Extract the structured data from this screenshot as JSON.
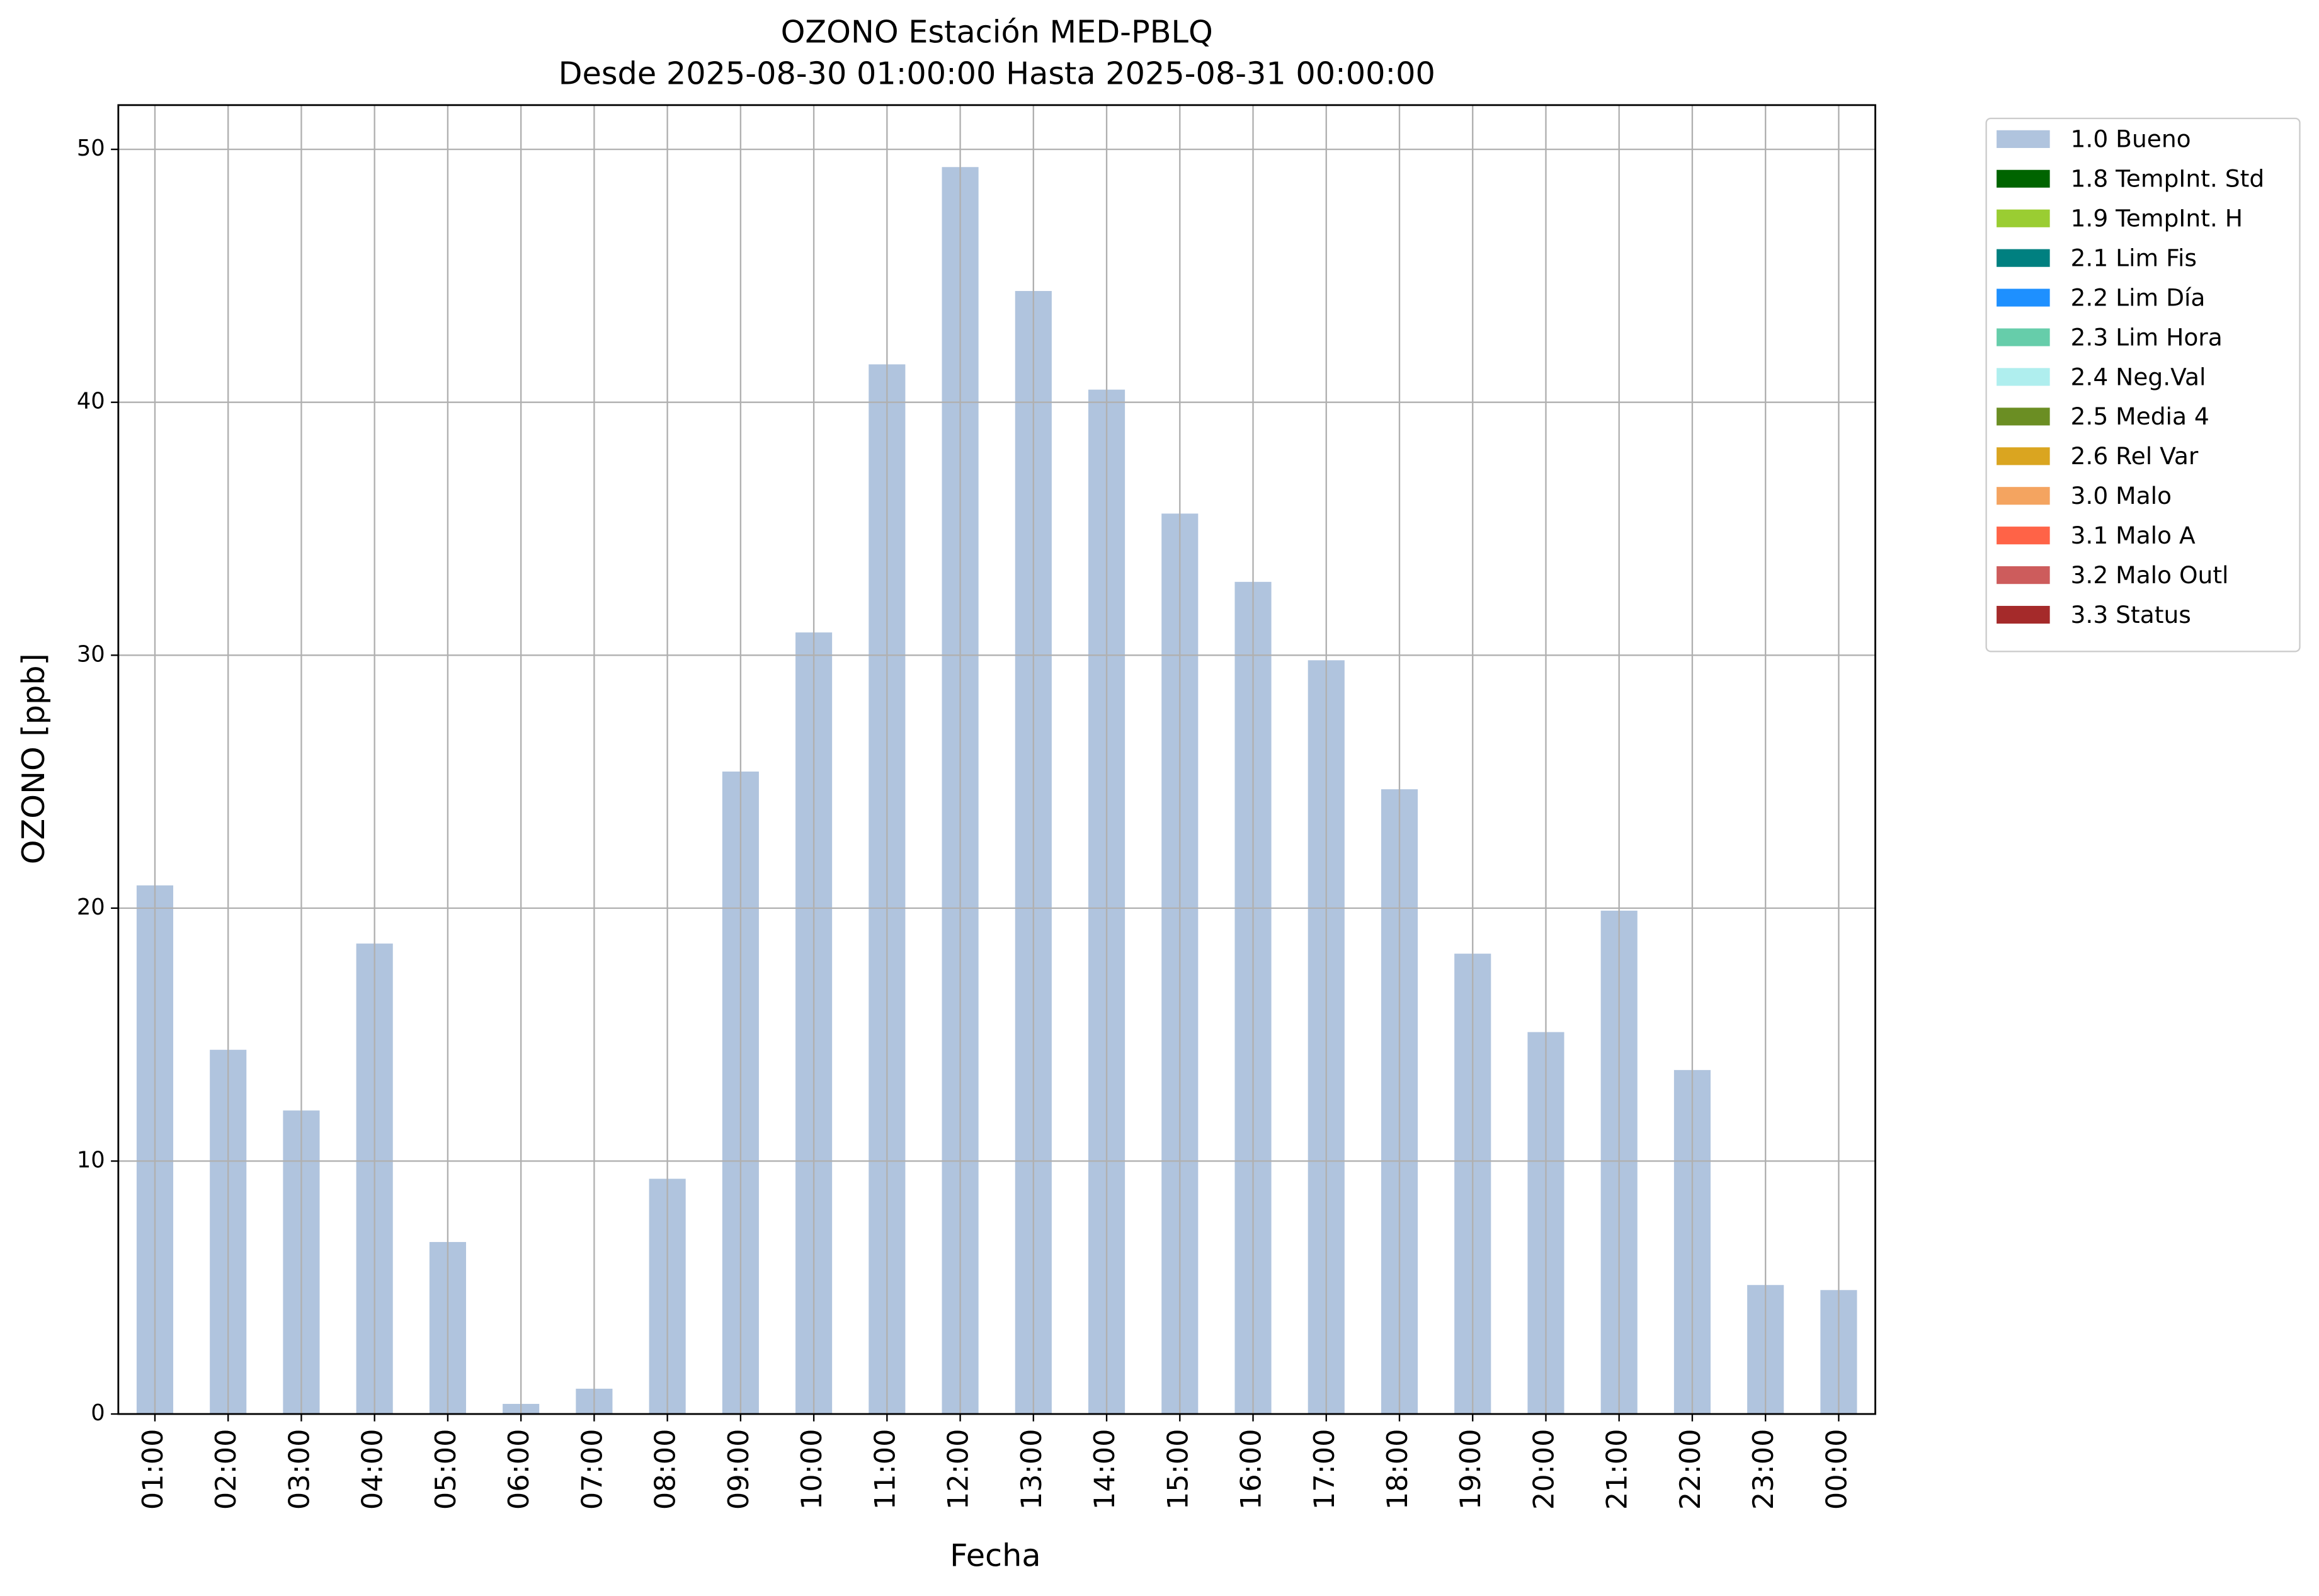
{
  "chart_data": {
    "type": "bar",
    "title": "OZONO Estación MED-PBLQ",
    "subtitle": "Desde 2025-08-30 01:00:00 Hasta 2025-08-31 00:00:00",
    "x_label": "Fecha",
    "y_label": "OZONO [ppb]",
    "categories": [
      "01:00",
      "02:00",
      "03:00",
      "04:00",
      "05:00",
      "06:00",
      "07:00",
      "08:00",
      "09:00",
      "10:00",
      "11:00",
      "12:00",
      "13:00",
      "14:00",
      "15:00",
      "16:00",
      "17:00",
      "18:00",
      "19:00",
      "20:00",
      "21:00",
      "22:00",
      "23:00",
      "00:00"
    ],
    "series": [
      {
        "name": "1.0 Bueno",
        "color": "#b0c4de",
        "values": [
          20.9,
          14.4,
          12.0,
          18.6,
          6.8,
          0.4,
          1.0,
          9.3,
          25.4,
          30.9,
          41.5,
          49.3,
          44.4,
          40.5,
          35.6,
          32.9,
          29.8,
          24.7,
          18.2,
          15.1,
          19.9,
          13.6,
          5.1,
          4.9
        ]
      },
      {
        "name": "1.8 TempInt. Std",
        "color": "#006400",
        "values": [
          0,
          0,
          0,
          0,
          0,
          0,
          0,
          0,
          0,
          0,
          0,
          0,
          0,
          0,
          0,
          0,
          0,
          0,
          0,
          0,
          0,
          0,
          0,
          0
        ]
      },
      {
        "name": "1.9 TempInt. H",
        "color": "#9acd32",
        "values": [
          0,
          0,
          0,
          0,
          0,
          0,
          0,
          0,
          0,
          0,
          0,
          0,
          0,
          0,
          0,
          0,
          0,
          0,
          0,
          0,
          0,
          0,
          0,
          0
        ]
      },
      {
        "name": "2.1 Lim Fis",
        "color": "#008080",
        "values": [
          0,
          0,
          0,
          0,
          0,
          0,
          0,
          0,
          0,
          0,
          0,
          0,
          0,
          0,
          0,
          0,
          0,
          0,
          0,
          0,
          0,
          0,
          0,
          0
        ]
      },
      {
        "name": "2.2 Lim Día",
        "color": "#1e90ff",
        "values": [
          0,
          0,
          0,
          0,
          0,
          0,
          0,
          0,
          0,
          0,
          0,
          0,
          0,
          0,
          0,
          0,
          0,
          0,
          0,
          0,
          0,
          0,
          0,
          0
        ]
      },
      {
        "name": "2.3 Lim Hora",
        "color": "#66cdaa",
        "values": [
          0,
          0,
          0,
          0,
          0,
          0,
          0,
          0,
          0,
          0,
          0,
          0,
          0,
          0,
          0,
          0,
          0,
          0,
          0,
          0,
          0,
          0,
          0,
          0
        ]
      },
      {
        "name": "2.4 Neg.Val",
        "color": "#afeeee",
        "values": [
          0,
          0,
          0,
          0,
          0,
          0,
          0,
          0,
          0,
          0,
          0,
          0,
          0,
          0,
          0,
          0,
          0,
          0,
          0,
          0,
          0,
          0,
          0,
          0
        ]
      },
      {
        "name": "2.5 Media 4",
        "color": "#6b8e23",
        "values": [
          0,
          0,
          0,
          0,
          0,
          0,
          0,
          0,
          0,
          0,
          0,
          0,
          0,
          0,
          0,
          0,
          0,
          0,
          0,
          0,
          0,
          0,
          0,
          0
        ]
      },
      {
        "name": "2.6 Rel Var",
        "color": "#daa520",
        "values": [
          0,
          0,
          0,
          0,
          0,
          0,
          0,
          0,
          0,
          0,
          0,
          0,
          0,
          0,
          0,
          0,
          0,
          0,
          0,
          0,
          0,
          0,
          0,
          0
        ]
      },
      {
        "name": "3.0 Malo",
        "color": "#f4a460",
        "values": [
          0,
          0,
          0,
          0,
          0,
          0,
          0,
          0,
          0,
          0,
          0,
          0,
          0,
          0,
          0,
          0,
          0,
          0,
          0,
          0,
          0,
          0,
          0,
          0
        ]
      },
      {
        "name": "3.1 Malo A",
        "color": "#ff6347",
        "values": [
          0,
          0,
          0,
          0,
          0,
          0,
          0,
          0,
          0,
          0,
          0,
          0,
          0,
          0,
          0,
          0,
          0,
          0,
          0,
          0,
          0,
          0,
          0,
          0
        ]
      },
      {
        "name": "3.2 Malo Outl",
        "color": "#cd5c5c",
        "values": [
          0,
          0,
          0,
          0,
          0,
          0,
          0,
          0,
          0,
          0,
          0,
          0,
          0,
          0,
          0,
          0,
          0,
          0,
          0,
          0,
          0,
          0,
          0,
          0
        ]
      },
      {
        "name": "3.3 Status",
        "color": "#a52a2a",
        "values": [
          0,
          0,
          0,
          0,
          0,
          0,
          0,
          0,
          0,
          0,
          0,
          0,
          0,
          0,
          0,
          0,
          0,
          0,
          0,
          0,
          0,
          0,
          0,
          0
        ]
      }
    ],
    "stacked": true,
    "ylim": [
      0,
      51.75
    ],
    "yticks": [
      0,
      10,
      20,
      30,
      40,
      50
    ],
    "grid": true,
    "legend_position": "outside-upper-right"
  }
}
